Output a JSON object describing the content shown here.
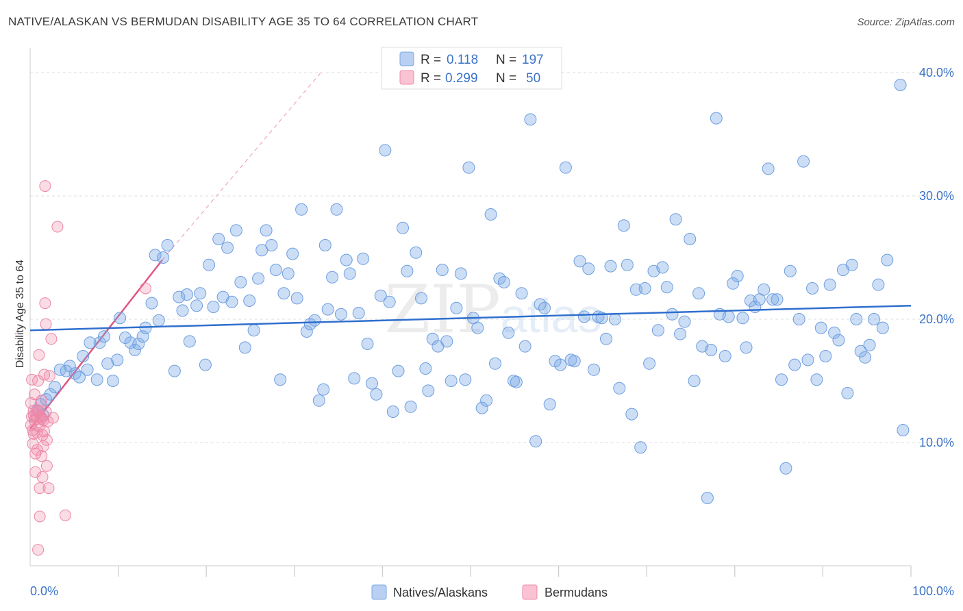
{
  "title": "NATIVE/ALASKAN VS BERMUDAN DISABILITY AGE 35 TO 64 CORRELATION CHART",
  "source": "Source: ZipAtlas.com",
  "watermark": "ZIPatlas",
  "colors": {
    "blue": "#7aa7e6",
    "blue_line": "#2f6fce",
    "pink": "#f08aaa",
    "pink_line": "#e2557f",
    "accent_text": "#3b73c8"
  },
  "legend_top": {
    "rows": [
      {
        "r_label": "R =",
        "r_value": "0.118",
        "n_label": "N =",
        "n_value": "197"
      },
      {
        "r_label": "R =",
        "r_value": "0.299",
        "n_label": "N =",
        "n_value": "50"
      }
    ]
  },
  "chart_data": {
    "type": "scatter",
    "title": "NATIVE/ALASKAN VS BERMUDAN DISABILITY AGE 35 TO 64 CORRELATION CHART",
    "xlabel": "",
    "ylabel": "Disability Age 35 to 64",
    "xlim": [
      0,
      100
    ],
    "ylim": [
      0,
      42
    ],
    "x_tick_labels": [
      "0.0%",
      "100.0%"
    ],
    "y_ticks": [
      10,
      20,
      30,
      40
    ],
    "y_tick_labels": [
      "10.0%",
      "20.0%",
      "30.0%",
      "40.0%"
    ],
    "grid": true,
    "legend_position": "top-center",
    "series": [
      {
        "name": "Natives/Alaskans",
        "color": "#7aa7e6",
        "trend": {
          "x": [
            0,
            100
          ],
          "y": [
            19.1,
            21.1
          ]
        },
        "points": [
          [
            0.8,
            12.6
          ],
          [
            1.2,
            13.1
          ],
          [
            1.5,
            12.2
          ],
          [
            1.8,
            13.5
          ],
          [
            2.3,
            13.9
          ],
          [
            2.8,
            14.5
          ],
          [
            3.4,
            15.9
          ],
          [
            4.1,
            15.8
          ],
          [
            4.5,
            16.2
          ],
          [
            5.1,
            15.6
          ],
          [
            5.6,
            15.3
          ],
          [
            6.0,
            17.0
          ],
          [
            6.5,
            15.9
          ],
          [
            6.8,
            18.1
          ],
          [
            7.6,
            15.1
          ],
          [
            7.9,
            18.1
          ],
          [
            8.4,
            18.6
          ],
          [
            8.8,
            16.4
          ],
          [
            9.4,
            15.0
          ],
          [
            9.9,
            16.7
          ],
          [
            10.2,
            20.1
          ],
          [
            10.8,
            18.5
          ],
          [
            11.4,
            18.1
          ],
          [
            11.9,
            17.5
          ],
          [
            12.3,
            18.0
          ],
          [
            12.8,
            18.6
          ],
          [
            13.1,
            19.3
          ],
          [
            13.8,
            21.3
          ],
          [
            14.2,
            25.2
          ],
          [
            14.6,
            19.9
          ],
          [
            15.1,
            25.0
          ],
          [
            15.6,
            26.0
          ],
          [
            16.4,
            15.8
          ],
          [
            16.9,
            21.8
          ],
          [
            17.3,
            20.7
          ],
          [
            17.8,
            22.0
          ],
          [
            18.1,
            18.2
          ],
          [
            18.9,
            21.1
          ],
          [
            19.3,
            22.1
          ],
          [
            19.9,
            16.3
          ],
          [
            20.3,
            24.4
          ],
          [
            20.8,
            21.0
          ],
          [
            21.4,
            26.5
          ],
          [
            21.9,
            21.8
          ],
          [
            22.4,
            25.8
          ],
          [
            22.9,
            21.4
          ],
          [
            23.4,
            27.2
          ],
          [
            23.9,
            23.0
          ],
          [
            24.4,
            17.7
          ],
          [
            24.9,
            21.5
          ],
          [
            25.4,
            19.1
          ],
          [
            25.9,
            23.3
          ],
          [
            26.3,
            25.6
          ],
          [
            26.8,
            27.2
          ],
          [
            27.4,
            26.0
          ],
          [
            27.9,
            24.0
          ],
          [
            28.4,
            15.1
          ],
          [
            28.8,
            22.1
          ],
          [
            29.3,
            23.7
          ],
          [
            29.8,
            25.3
          ],
          [
            30.3,
            21.7
          ],
          [
            30.8,
            28.9
          ],
          [
            31.4,
            19.0
          ],
          [
            31.8,
            19.6
          ],
          [
            32.3,
            19.9
          ],
          [
            32.8,
            13.4
          ],
          [
            33.3,
            14.3
          ],
          [
            33.8,
            20.8
          ],
          [
            34.3,
            23.4
          ],
          [
            34.8,
            28.9
          ],
          [
            35.3,
            20.4
          ],
          [
            35.9,
            24.8
          ],
          [
            36.3,
            23.7
          ],
          [
            36.8,
            15.2
          ],
          [
            37.3,
            20.5
          ],
          [
            37.8,
            24.9
          ],
          [
            38.3,
            18.0
          ],
          [
            38.8,
            14.8
          ],
          [
            39.3,
            13.9
          ],
          [
            39.8,
            21.9
          ],
          [
            40.3,
            33.7
          ],
          [
            40.8,
            21.4
          ],
          [
            41.2,
            12.5
          ],
          [
            41.8,
            15.8
          ],
          [
            42.3,
            27.4
          ],
          [
            42.8,
            23.9
          ],
          [
            43.2,
            12.9
          ],
          [
            43.8,
            25.4
          ],
          [
            44.4,
            21.7
          ],
          [
            44.9,
            16.0
          ],
          [
            45.2,
            14.2
          ],
          [
            45.7,
            18.4
          ],
          [
            46.3,
            17.8
          ],
          [
            46.8,
            24.0
          ],
          [
            47.3,
            18.2
          ],
          [
            47.8,
            15.0
          ],
          [
            48.4,
            20.9
          ],
          [
            48.9,
            23.7
          ],
          [
            49.4,
            15.1
          ],
          [
            49.8,
            32.3
          ],
          [
            50.3,
            20.1
          ],
          [
            50.8,
            19.3
          ],
          [
            51.3,
            12.8
          ],
          [
            51.8,
            13.4
          ],
          [
            52.3,
            28.5
          ],
          [
            52.8,
            16.4
          ],
          [
            53.3,
            23.3
          ],
          [
            53.8,
            23.0
          ],
          [
            54.3,
            18.9
          ],
          [
            54.9,
            15.0
          ],
          [
            55.2,
            14.9
          ],
          [
            55.8,
            22.1
          ],
          [
            56.2,
            17.8
          ],
          [
            56.8,
            36.2
          ],
          [
            57.4,
            10.1
          ],
          [
            57.9,
            21.2
          ],
          [
            58.4,
            20.9
          ],
          [
            59.0,
            13.1
          ],
          [
            59.6,
            16.6
          ],
          [
            60.2,
            16.3
          ],
          [
            60.8,
            32.3
          ],
          [
            61.4,
            16.7
          ],
          [
            61.8,
            16.6
          ],
          [
            62.4,
            24.7
          ],
          [
            62.9,
            20.2
          ],
          [
            63.4,
            24.1
          ],
          [
            64.0,
            15.9
          ],
          [
            64.5,
            20.2
          ],
          [
            64.9,
            20.1
          ],
          [
            65.4,
            18.4
          ],
          [
            65.9,
            24.3
          ],
          [
            66.4,
            20.0
          ],
          [
            66.9,
            14.4
          ],
          [
            67.4,
            27.6
          ],
          [
            67.8,
            24.4
          ],
          [
            68.3,
            12.3
          ],
          [
            68.8,
            22.4
          ],
          [
            69.3,
            9.6
          ],
          [
            69.8,
            22.5
          ],
          [
            70.3,
            16.4
          ],
          [
            70.8,
            23.9
          ],
          [
            71.3,
            19.1
          ],
          [
            71.8,
            24.2
          ],
          [
            72.3,
            22.6
          ],
          [
            72.9,
            20.4
          ],
          [
            73.3,
            28.1
          ],
          [
            73.8,
            18.8
          ],
          [
            74.3,
            19.8
          ],
          [
            74.9,
            26.5
          ],
          [
            75.4,
            15.0
          ],
          [
            75.9,
            22.1
          ],
          [
            76.3,
            17.8
          ],
          [
            76.9,
            5.5
          ],
          [
            77.3,
            17.5
          ],
          [
            77.9,
            36.3
          ],
          [
            78.3,
            20.4
          ],
          [
            78.9,
            17.0
          ],
          [
            79.3,
            20.2
          ],
          [
            79.8,
            22.9
          ],
          [
            80.3,
            23.5
          ],
          [
            80.9,
            20.1
          ],
          [
            81.3,
            17.7
          ],
          [
            81.8,
            21.5
          ],
          [
            82.3,
            21.0
          ],
          [
            82.8,
            21.6
          ],
          [
            83.3,
            22.4
          ],
          [
            83.8,
            32.2
          ],
          [
            84.3,
            21.6
          ],
          [
            84.8,
            21.6
          ],
          [
            85.3,
            15.1
          ],
          [
            85.8,
            7.9
          ],
          [
            86.3,
            23.9
          ],
          [
            86.8,
            16.3
          ],
          [
            87.3,
            20.0
          ],
          [
            87.8,
            32.8
          ],
          [
            88.3,
            16.7
          ],
          [
            88.8,
            22.5
          ],
          [
            89.3,
            15.1
          ],
          [
            89.8,
            19.3
          ],
          [
            90.3,
            17.0
          ],
          [
            90.8,
            22.8
          ],
          [
            91.3,
            18.9
          ],
          [
            91.8,
            18.3
          ],
          [
            92.3,
            24.0
          ],
          [
            92.8,
            14.0
          ],
          [
            93.3,
            24.4
          ],
          [
            93.8,
            20.0
          ],
          [
            94.3,
            17.4
          ],
          [
            94.8,
            16.9
          ],
          [
            95.3,
            17.9
          ],
          [
            95.8,
            20.0
          ],
          [
            96.3,
            22.8
          ],
          [
            96.8,
            19.3
          ],
          [
            97.3,
            24.8
          ],
          [
            98.8,
            39.0
          ],
          [
            99.1,
            11.0
          ],
          [
            33.5,
            26.0
          ]
        ]
      },
      {
        "name": "Bermudans",
        "color": "#f08aaa",
        "trend": {
          "x": [
            0,
            15
          ],
          "y": [
            11.1,
            24.8
          ]
        },
        "trend_extended": {
          "x": [
            15,
            33
          ],
          "y": [
            24.8,
            40.0
          ]
        },
        "points": [
          [
            0.1,
            11.4
          ],
          [
            0.1,
            13.2
          ],
          [
            0.2,
            15.1
          ],
          [
            0.2,
            12.1
          ],
          [
            0.3,
            11.0
          ],
          [
            0.3,
            9.9
          ],
          [
            0.4,
            12.6
          ],
          [
            0.4,
            10.7
          ],
          [
            0.5,
            11.8
          ],
          [
            0.5,
            13.9
          ],
          [
            0.6,
            9.1
          ],
          [
            0.6,
            7.6
          ],
          [
            0.7,
            11.9
          ],
          [
            0.7,
            12.2
          ],
          [
            0.8,
            10.8
          ],
          [
            0.8,
            9.4
          ],
          [
            0.9,
            12.6
          ],
          [
            0.9,
            15.0
          ],
          [
            1.0,
            17.1
          ],
          [
            1.0,
            11.3
          ],
          [
            1.1,
            6.3
          ],
          [
            1.1,
            4.0
          ],
          [
            1.2,
            12.1
          ],
          [
            1.2,
            12.0
          ],
          [
            1.3,
            8.9
          ],
          [
            1.3,
            13.4
          ],
          [
            1.4,
            10.6
          ],
          [
            1.4,
            7.2
          ],
          [
            1.5,
            11.8
          ],
          [
            1.5,
            9.7
          ],
          [
            1.6,
            10.9
          ],
          [
            1.6,
            15.5
          ],
          [
            1.7,
            21.3
          ],
          [
            1.7,
            30.8
          ],
          [
            1.8,
            19.6
          ],
          [
            1.8,
            12.5
          ],
          [
            1.9,
            10.2
          ],
          [
            1.9,
            8.1
          ],
          [
            2.0,
            11.7
          ],
          [
            2.1,
            6.3
          ],
          [
            2.2,
            15.4
          ],
          [
            2.4,
            18.4
          ],
          [
            2.6,
            12.0
          ],
          [
            3.1,
            27.5
          ],
          [
            4.0,
            4.1
          ],
          [
            13.1,
            22.5
          ],
          [
            1.3,
            11.9
          ],
          [
            0.9,
            1.3
          ],
          [
            1.0,
            12.5
          ],
          [
            0.4,
            12.2
          ]
        ]
      }
    ]
  },
  "bottom_legend": [
    {
      "label": "Natives/Alaskans"
    },
    {
      "label": "Bermudans"
    }
  ]
}
